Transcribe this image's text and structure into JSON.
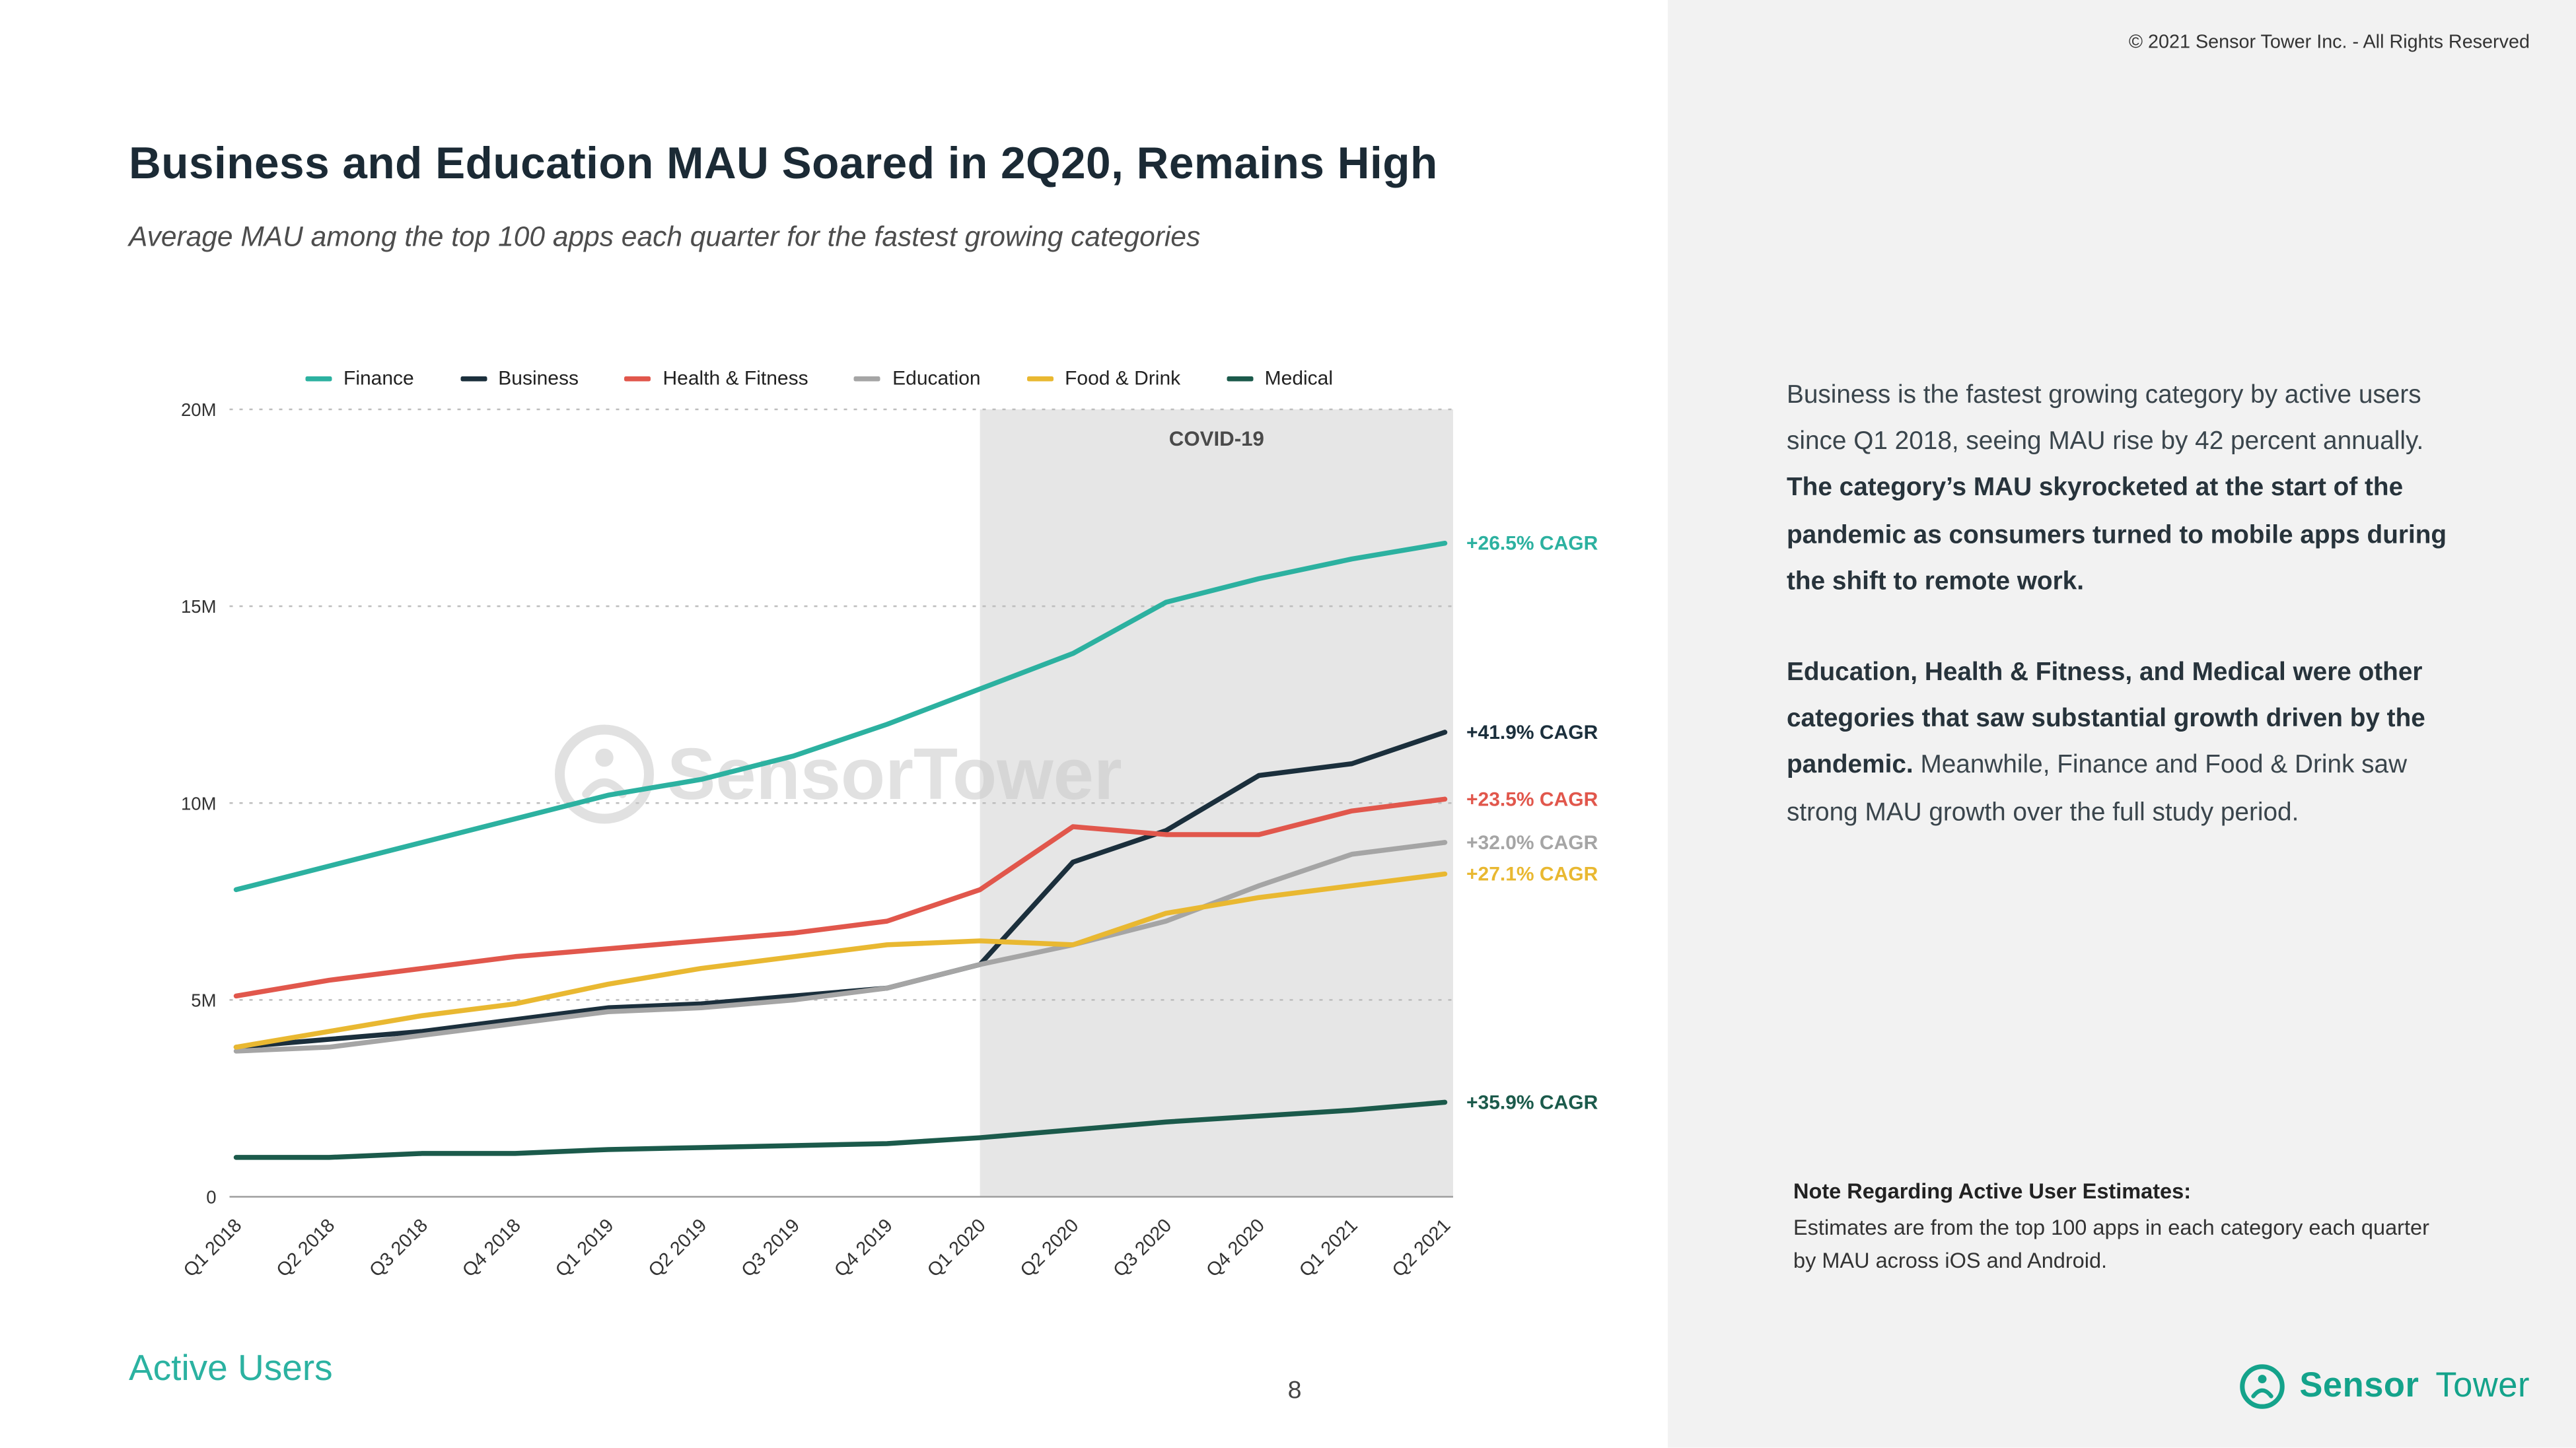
{
  "copyright": "© 2021 Sensor Tower Inc. - All Rights Reserved",
  "header": {
    "title": "Business and Education MAU Soared in 2Q20, Remains High",
    "subtitle": "Average MAU among the top 100 apps each quarter for the fastest growing categories"
  },
  "chart_data": {
    "type": "line",
    "title": "Average MAU among the top 100 apps each quarter for the fastest growing categories",
    "xlabel": "",
    "ylabel": "Average MAU",
    "ylim": [
      0,
      20
    ],
    "grid": true,
    "legend_position": "top",
    "categories": [
      "Q1 2018",
      "Q2 2018",
      "Q3 2018",
      "Q4 2018",
      "Q1 2019",
      "Q2 2019",
      "Q3 2019",
      "Q4 2019",
      "Q1 2020",
      "Q2 2020",
      "Q3 2020",
      "Q4 2020",
      "Q1 2021",
      "Q2 2021"
    ],
    "y_ticks": [
      {
        "value": 0,
        "label": "0"
      },
      {
        "value": 5,
        "label": "5M"
      },
      {
        "value": 10,
        "label": "10M"
      },
      {
        "value": 15,
        "label": "15M"
      },
      {
        "value": 20,
        "label": "20M"
      }
    ],
    "units": "millions of MAU",
    "covid_region": {
      "start": "Q1 2020",
      "label": "COVID-19"
    },
    "watermark": "SensorTower",
    "series": [
      {
        "name": "Finance",
        "color": "#2cb1a0",
        "cagr_label": "+26.5% CAGR",
        "values": [
          7.8,
          8.4,
          9.0,
          9.6,
          10.2,
          10.6,
          11.2,
          12.0,
          12.9,
          13.8,
          15.1,
          15.7,
          16.2,
          16.6
        ]
      },
      {
        "name": "Business",
        "color": "#1b2f3c",
        "cagr_label": "+41.9% CAGR",
        "values": [
          3.8,
          4.0,
          4.2,
          4.5,
          4.8,
          4.9,
          5.1,
          5.3,
          5.9,
          8.5,
          9.3,
          10.7,
          11.0,
          11.8
        ]
      },
      {
        "name": "Health & Fitness",
        "color": "#e1574c",
        "cagr_label": "+23.5% CAGR",
        "values": [
          5.1,
          5.5,
          5.8,
          6.1,
          6.3,
          6.5,
          6.7,
          7.0,
          7.8,
          9.4,
          9.2,
          9.2,
          9.8,
          10.1
        ]
      },
      {
        "name": "Education",
        "color": "#a5a5a5",
        "cagr_label": "+32.0% CAGR",
        "values": [
          3.7,
          3.8,
          4.1,
          4.4,
          4.7,
          4.8,
          5.0,
          5.3,
          5.9,
          6.4,
          7.0,
          7.9,
          8.7,
          9.0
        ]
      },
      {
        "name": "Food & Drink",
        "color": "#e9b831",
        "cagr_label": "+27.1% CAGR",
        "values": [
          3.8,
          4.2,
          4.6,
          4.9,
          5.4,
          5.8,
          6.1,
          6.4,
          6.5,
          6.4,
          7.2,
          7.6,
          7.9,
          8.2
        ]
      },
      {
        "name": "Medical",
        "color": "#1b5a4b",
        "cagr_label": "+35.9% CAGR",
        "values": [
          1.0,
          1.0,
          1.1,
          1.1,
          1.2,
          1.25,
          1.3,
          1.35,
          1.5,
          1.7,
          1.9,
          2.05,
          2.2,
          2.4
        ]
      }
    ]
  },
  "commentary": {
    "p1_normal": "Business is the fastest growing category by active users since Q1 2018, seeing MAU rise by 42 percent annually.",
    "p1_bold": "The category’s MAU skyrocketed at the start of the pandemic as consumers turned to mobile apps during the shift to remote work.",
    "p2_bold": "Education, Health & Fitness, and Medical were other categories that saw substantial growth driven by the pandemic.",
    "p2_normal": "Meanwhile, Finance and Food & Drink saw strong MAU growth over the full study period."
  },
  "note": {
    "title": "Note Regarding Active User Estimates:",
    "body": "Estimates are from the top 100 apps in each category each quarter by MAU across iOS and Android."
  },
  "footer": {
    "section_label": "Active Users",
    "page_number": "8",
    "logo_sensor": "Sensor",
    "logo_tower": "Tower"
  },
  "colors": {
    "brand_teal": "#14a38b",
    "panel_background": "#f2f2f2",
    "covid_region_fill": "#e6e6e6",
    "title_text": "#1b2a35"
  }
}
